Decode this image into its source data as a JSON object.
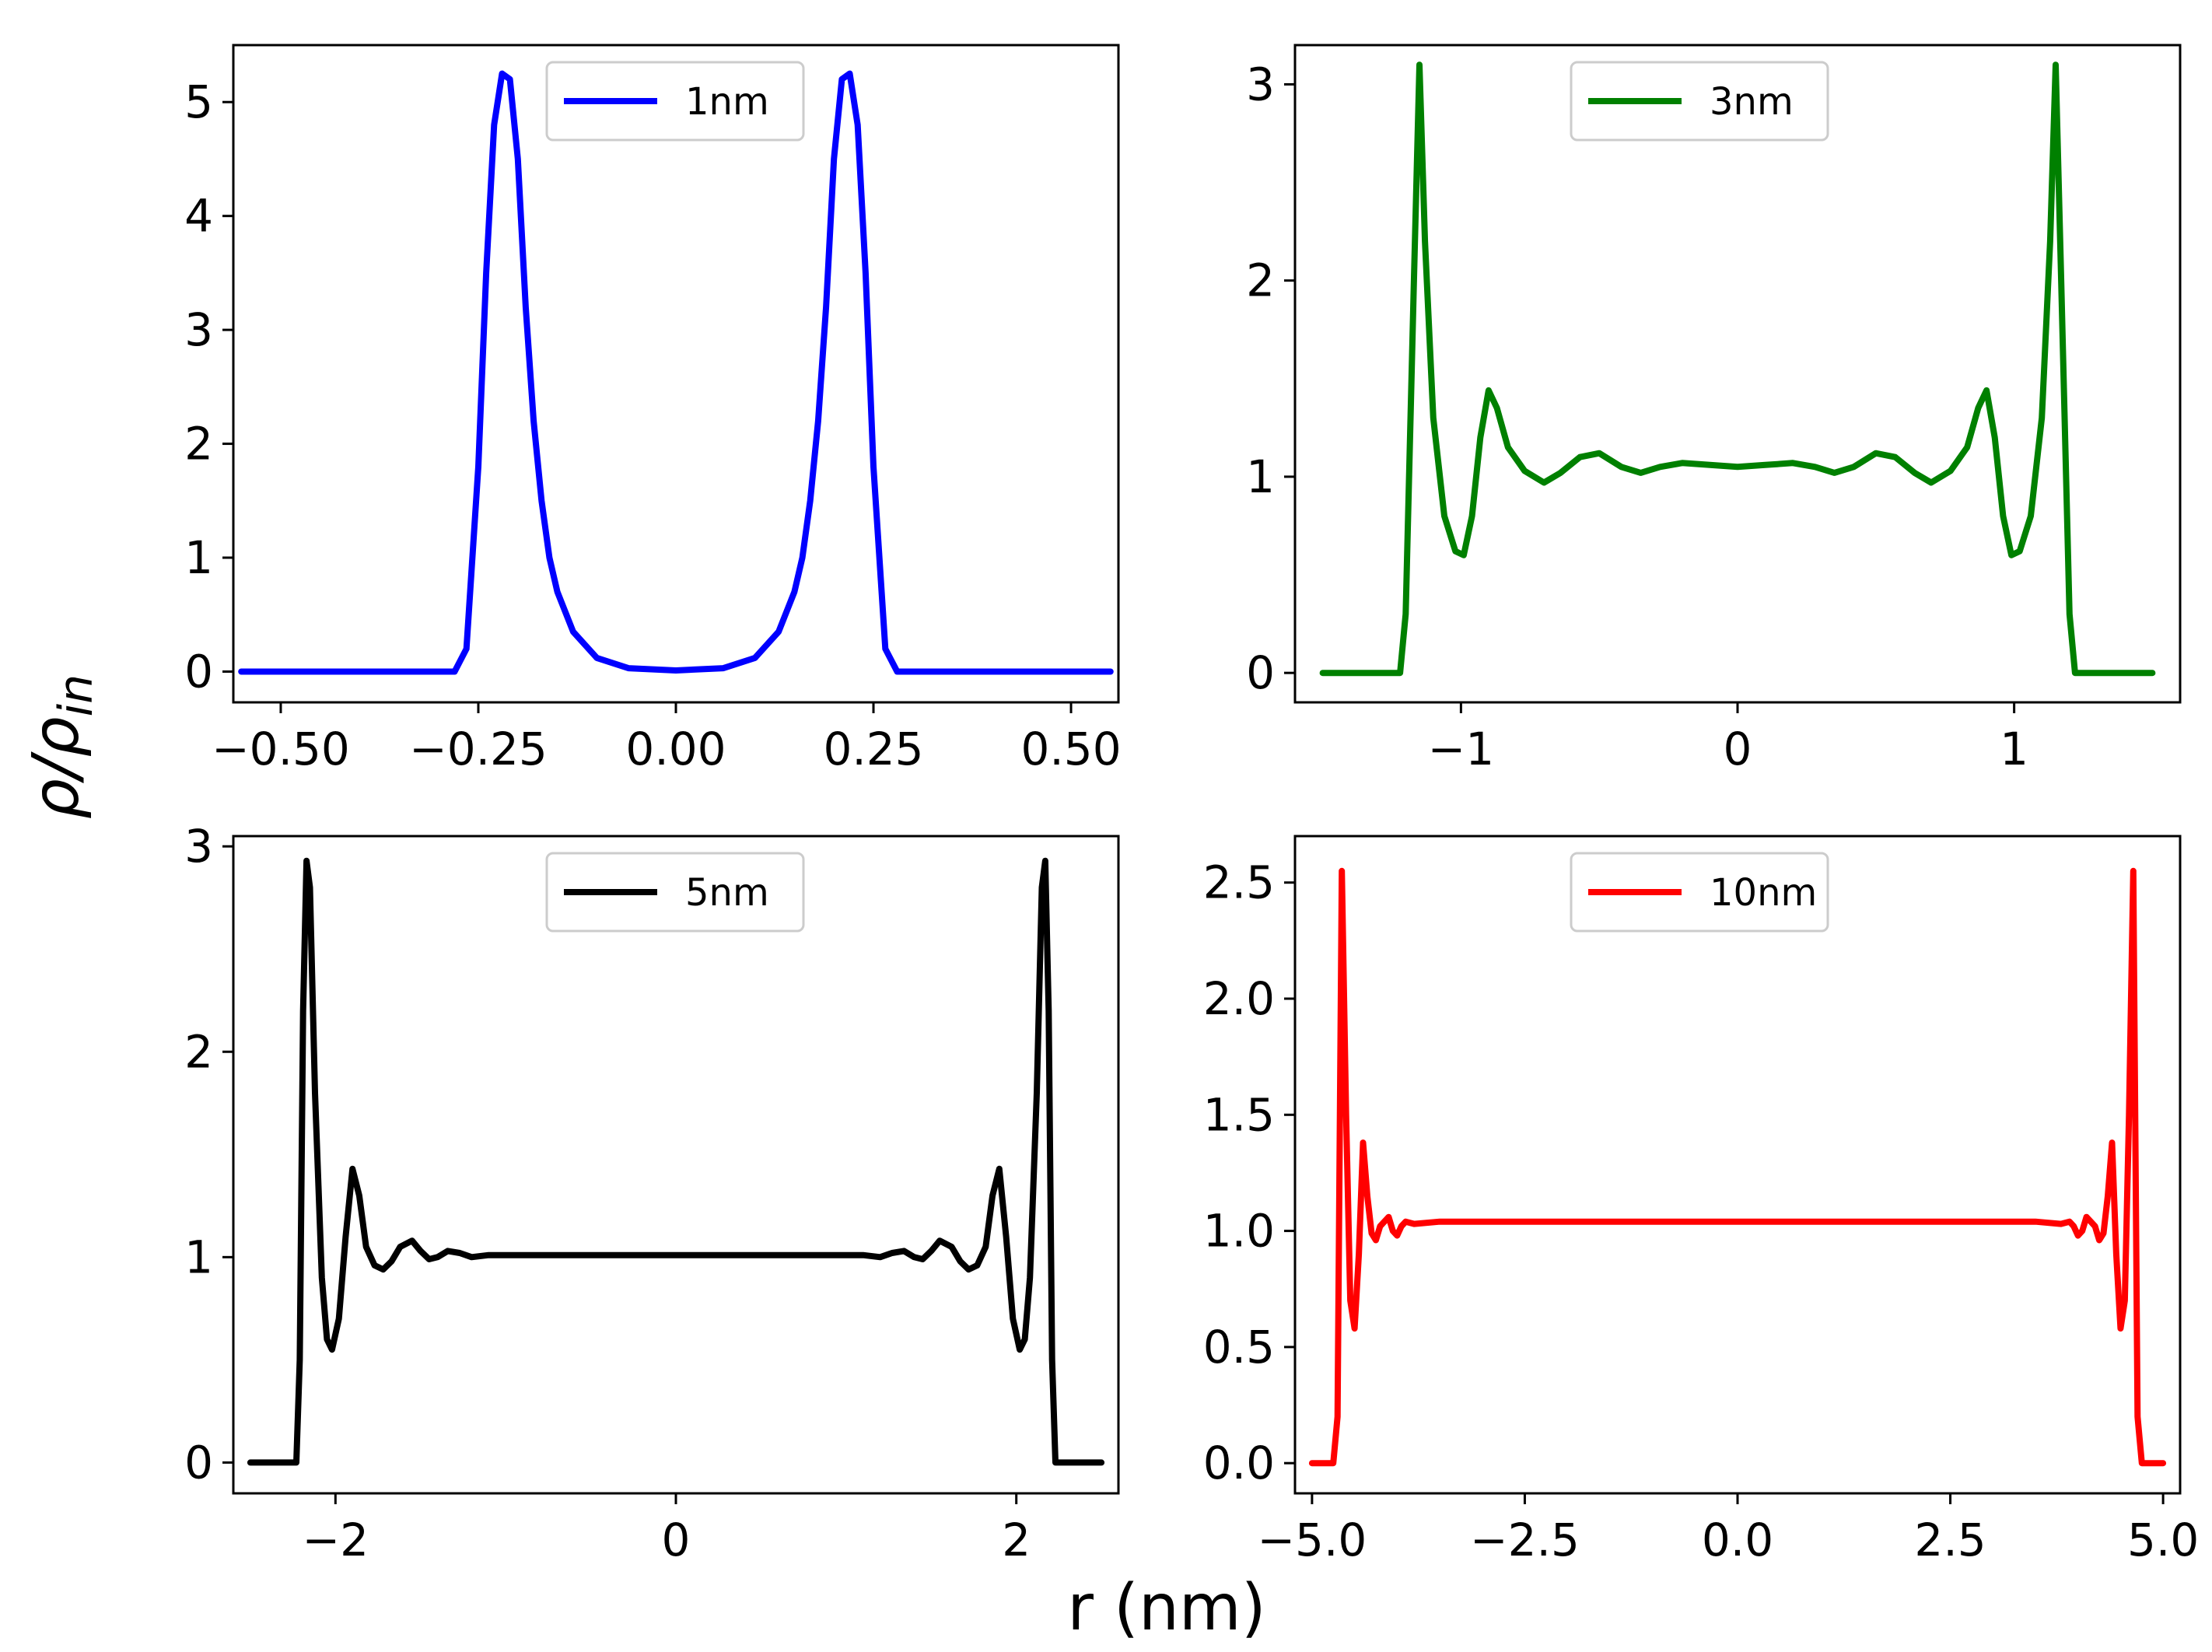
{
  "figure": {
    "ylabel": "ρ/ρ",
    "ylabel_sub": "in",
    "xlabel": "r (nm)"
  },
  "chart_data": [
    {
      "type": "line",
      "legend": "1nm",
      "color": "#0000ff",
      "xlim": [
        -0.56,
        0.56
      ],
      "ylim": [
        -0.27,
        5.5
      ],
      "xticks": [
        -0.5,
        -0.25,
        0.0,
        0.25,
        0.5
      ],
      "xtick_labels": [
        "−0.50",
        "−0.25",
        "0.00",
        "0.25",
        "0.50"
      ],
      "yticks": [
        0,
        1,
        2,
        3,
        4,
        5
      ],
      "ytick_labels": [
        "0",
        "1",
        "2",
        "3",
        "4",
        "5"
      ],
      "x": [
        -0.55,
        -0.28,
        -0.265,
        -0.25,
        -0.24,
        -0.23,
        -0.22,
        -0.21,
        -0.2,
        -0.19,
        -0.18,
        -0.17,
        -0.16,
        -0.15,
        -0.13,
        -0.1,
        -0.06,
        0.0,
        0.06,
        0.1,
        0.13,
        0.15,
        0.16,
        0.17,
        0.18,
        0.19,
        0.2,
        0.21,
        0.22,
        0.23,
        0.24,
        0.25,
        0.265,
        0.28,
        0.55
      ],
      "y": [
        0.0,
        0.0,
        0.2,
        1.8,
        3.5,
        4.8,
        5.25,
        5.2,
        4.5,
        3.2,
        2.2,
        1.5,
        1.0,
        0.7,
        0.35,
        0.12,
        0.03,
        0.01,
        0.03,
        0.12,
        0.35,
        0.7,
        1.0,
        1.5,
        2.2,
        3.2,
        4.5,
        5.2,
        5.25,
        4.8,
        3.5,
        1.8,
        0.2,
        0.0,
        0.0
      ]
    },
    {
      "type": "line",
      "legend": "3nm",
      "color": "#008000",
      "xlim": [
        -1.6,
        1.6
      ],
      "ylim": [
        -0.15,
        3.2
      ],
      "xticks": [
        -1,
        0,
        1
      ],
      "xtick_labels": [
        "−1",
        "0",
        "1"
      ],
      "yticks": [
        0,
        1,
        2,
        3
      ],
      "ytick_labels": [
        "0",
        "1",
        "2",
        "3"
      ],
      "x": [
        -1.5,
        -1.22,
        -1.2,
        -1.17,
        -1.15,
        -1.13,
        -1.1,
        -1.06,
        -1.02,
        -0.99,
        -0.96,
        -0.93,
        -0.9,
        -0.87,
        -0.83,
        -0.77,
        -0.7,
        -0.64,
        -0.57,
        -0.5,
        -0.42,
        -0.35,
        -0.28,
        -0.2,
        -0.1,
        0.0,
        0.1,
        0.2,
        0.28,
        0.35,
        0.42,
        0.5,
        0.57,
        0.64,
        0.7,
        0.77,
        0.83,
        0.87,
        0.9,
        0.93,
        0.96,
        0.99,
        1.02,
        1.06,
        1.1,
        1.13,
        1.15,
        1.17,
        1.2,
        1.22,
        1.5
      ],
      "y": [
        0.0,
        0.0,
        0.3,
        2.0,
        3.1,
        2.2,
        1.3,
        0.8,
        0.62,
        0.6,
        0.8,
        1.2,
        1.44,
        1.35,
        1.15,
        1.03,
        0.97,
        1.02,
        1.1,
        1.12,
        1.05,
        1.02,
        1.05,
        1.07,
        1.06,
        1.05,
        1.06,
        1.07,
        1.05,
        1.02,
        1.05,
        1.12,
        1.1,
        1.02,
        0.97,
        1.03,
        1.15,
        1.35,
        1.44,
        1.2,
        0.8,
        0.6,
        0.62,
        0.8,
        1.3,
        2.2,
        3.1,
        2.0,
        0.3,
        0.0,
        0.0
      ]
    },
    {
      "type": "line",
      "legend": "5nm",
      "color": "#000000",
      "xlim": [
        -2.6,
        2.6
      ],
      "ylim": [
        -0.15,
        3.05
      ],
      "xticks": [
        -2,
        0,
        2
      ],
      "xtick_labels": [
        "−2",
        "0",
        "2"
      ],
      "yticks": [
        0,
        1,
        2,
        3
      ],
      "ytick_labels": [
        "0",
        "1",
        "2",
        "3"
      ],
      "x": [
        -2.5,
        -2.23,
        -2.21,
        -2.19,
        -2.17,
        -2.15,
        -2.12,
        -2.08,
        -2.05,
        -2.02,
        -1.98,
        -1.94,
        -1.9,
        -1.86,
        -1.82,
        -1.77,
        -1.72,
        -1.67,
        -1.62,
        -1.55,
        -1.5,
        -1.45,
        -1.4,
        -1.34,
        -1.27,
        -1.2,
        -1.1,
        -0.9,
        -0.6,
        -0.3,
        0.0,
        0.3,
        0.6,
        0.9,
        1.1,
        1.2,
        1.27,
        1.34,
        1.4,
        1.45,
        1.5,
        1.55,
        1.62,
        1.67,
        1.72,
        1.77,
        1.82,
        1.86,
        1.9,
        1.94,
        1.98,
        2.02,
        2.05,
        2.08,
        2.12,
        2.15,
        2.17,
        2.19,
        2.21,
        2.23,
        2.5
      ],
      "y": [
        0.0,
        0.0,
        0.5,
        2.2,
        2.93,
        2.8,
        1.8,
        0.9,
        0.6,
        0.55,
        0.7,
        1.1,
        1.43,
        1.3,
        1.05,
        0.96,
        0.94,
        0.98,
        1.05,
        1.08,
        1.03,
        0.99,
        1.0,
        1.03,
        1.02,
        1.0,
        1.01,
        1.01,
        1.01,
        1.01,
        1.01,
        1.01,
        1.01,
        1.01,
        1.01,
        1.0,
        1.02,
        1.03,
        1.0,
        0.99,
        1.03,
        1.08,
        1.05,
        0.98,
        0.94,
        0.96,
        1.05,
        1.3,
        1.43,
        1.1,
        0.7,
        0.55,
        0.6,
        0.9,
        1.8,
        2.8,
        2.93,
        2.2,
        0.5,
        0.0,
        0.0
      ]
    },
    {
      "type": "line",
      "legend": "10nm",
      "color": "#ff0000",
      "xlim": [
        -5.2,
        5.2
      ],
      "ylim": [
        -0.13,
        2.7
      ],
      "xticks": [
        -5.0,
        -2.5,
        0.0,
        2.5,
        5.0
      ],
      "xtick_labels": [
        "−5.0",
        "−2.5",
        "0.0",
        "2.5",
        "5.0"
      ],
      "yticks": [
        0.0,
        0.5,
        1.0,
        1.5,
        2.0,
        2.5
      ],
      "ytick_labels": [
        "0.0",
        "0.5",
        "1.0",
        "1.5",
        "2.0",
        "2.5"
      ],
      "x": [
        -5.0,
        -4.75,
        -4.7,
        -4.65,
        -4.6,
        -4.55,
        -4.5,
        -4.45,
        -4.4,
        -4.35,
        -4.3,
        -4.25,
        -4.2,
        -4.1,
        -4.05,
        -4.0,
        -3.95,
        -3.9,
        -3.8,
        -3.5,
        -2.0,
        0.0,
        2.0,
        3.5,
        3.8,
        3.9,
        3.95,
        4.0,
        4.05,
        4.1,
        4.2,
        4.25,
        4.3,
        4.35,
        4.4,
        4.45,
        4.5,
        4.55,
        4.6,
        4.65,
        4.7,
        4.75,
        5.0
      ],
      "y": [
        0.0,
        0.0,
        0.2,
        2.55,
        1.5,
        0.7,
        0.58,
        0.9,
        1.38,
        1.15,
        0.99,
        0.96,
        1.02,
        1.06,
        1.0,
        0.98,
        1.02,
        1.04,
        1.03,
        1.04,
        1.04,
        1.04,
        1.04,
        1.04,
        1.03,
        1.04,
        1.02,
        0.98,
        1.0,
        1.06,
        1.02,
        0.96,
        0.99,
        1.15,
        1.38,
        0.9,
        0.58,
        0.7,
        1.5,
        2.55,
        0.2,
        0.0,
        0.0
      ]
    }
  ]
}
